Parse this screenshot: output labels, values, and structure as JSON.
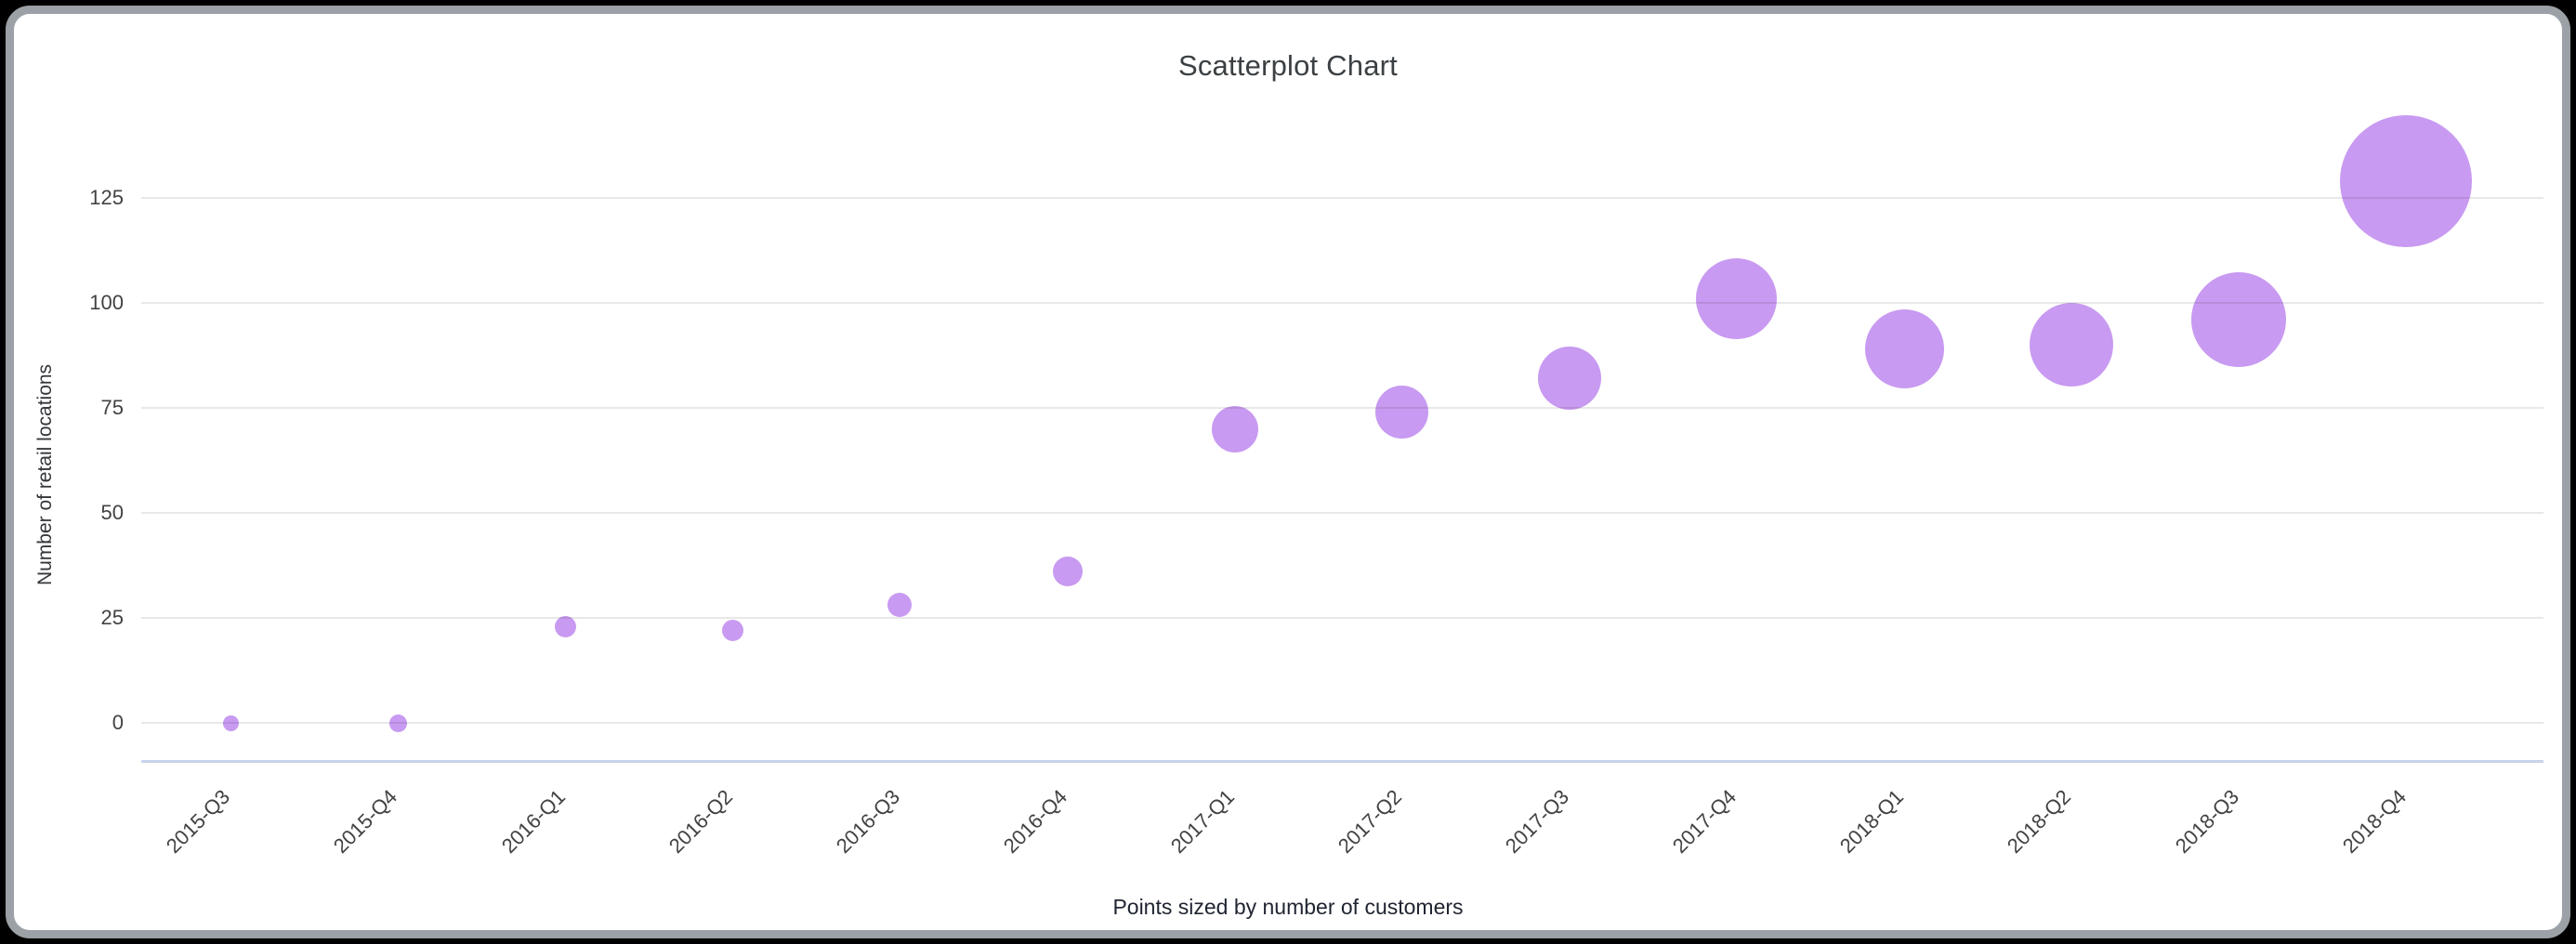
{
  "chart_data": {
    "type": "scatter",
    "title": "Scatterplot Chart",
    "ylabel": "Number of retail locations",
    "caption": "Points sized by number of customers",
    "size_encoding": "number of customers",
    "legend": "none",
    "grid": "horizontal gridlines on",
    "y_ticks": [
      0,
      25,
      50,
      75,
      100,
      125
    ],
    "ylim": [
      -9,
      150
    ],
    "categories": [
      "2015-Q3",
      "2015-Q4",
      "2016-Q1",
      "2016-Q2",
      "2016-Q3",
      "2016-Q4",
      "2017-Q1",
      "2017-Q2",
      "2017-Q3",
      "2017-Q4",
      "2018-Q1",
      "2018-Q2",
      "2018-Q3",
      "2018-Q4"
    ],
    "series": [
      {
        "name": "Number of retail locations",
        "values": [
          0,
          0,
          23,
          22,
          28,
          36,
          70,
          74,
          82,
          101,
          89,
          90,
          96,
          129
        ],
        "point_radius_px": [
          8.5,
          9.5,
          11.5,
          11.5,
          13,
          16,
          25,
          28.5,
          34,
          43.5,
          42.5,
          45,
          51,
          71
        ]
      }
    ],
    "colors": {
      "point_fill": "#c89af1",
      "gridline": "rgba(33,33,33,0.10)",
      "axis_line": "#c9d4ea",
      "title_text": "#3c4043",
      "tick_text": "#424242",
      "caption_text": "#1f2430",
      "card_background": "#ffffff",
      "card_border": "#9ba1a6",
      "page_background": "#000000"
    }
  }
}
